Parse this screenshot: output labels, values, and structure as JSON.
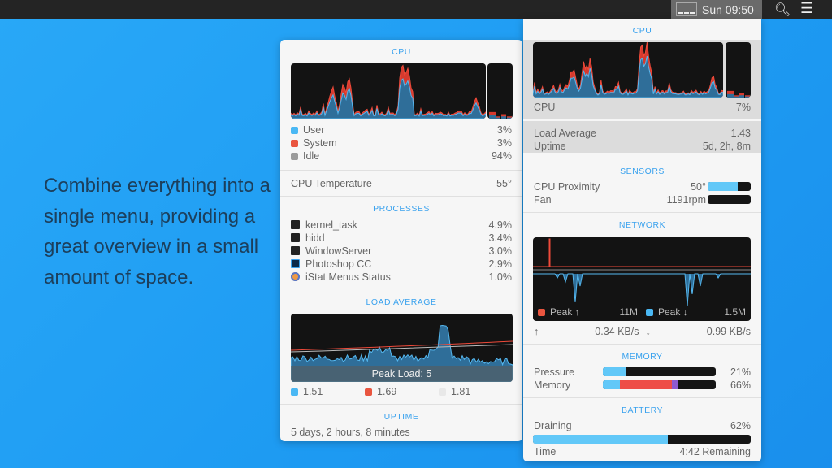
{
  "menubar": {
    "clock": "Sun 09:50",
    "icons": [
      "istat-graph-icon",
      "search-icon",
      "notification-list-icon"
    ]
  },
  "tagline": "Combine everything into a single menu, providing a great overview in a small amount of space.",
  "colors": {
    "user": "#4ab8f4",
    "system": "#e9553f",
    "idle": "#9b9b9b",
    "accent": "#3aa2ee",
    "purple": "#8e5bd0"
  },
  "left": {
    "cpu": {
      "title": "CPU",
      "rows": [
        {
          "label": "User",
          "value": "3%"
        },
        {
          "label": "System",
          "value": "3%"
        },
        {
          "label": "Idle",
          "value": "94%"
        }
      ],
      "temp_label": "CPU Temperature",
      "temp_value": "55°"
    },
    "processes": {
      "title": "PROCESSES",
      "items": [
        {
          "name": "kernel_task",
          "value": "4.9%",
          "icon": "terminal-icon"
        },
        {
          "name": "hidd",
          "value": "3.4%",
          "icon": "terminal-icon"
        },
        {
          "name": "WindowServer",
          "value": "3.0%",
          "icon": "terminal-icon"
        },
        {
          "name": "Photoshop CC",
          "value": "2.9%",
          "icon": "photoshop-icon"
        },
        {
          "name": "iStat Menus Status",
          "value": "1.0%",
          "icon": "istat-icon"
        }
      ]
    },
    "load": {
      "title": "LOAD AVERAGE",
      "peak": "Peak Load: 5",
      "values": [
        "1.51",
        "1.69",
        "1.81"
      ]
    },
    "uptime": {
      "title": "UPTIME",
      "value": "5 days, 2 hours, 8 minutes"
    }
  },
  "right": {
    "cpu": {
      "title": "CPU",
      "label": "CPU",
      "value": "7%",
      "load_label": "Load Average",
      "load_value": "1.43",
      "uptime_label": "Uptime",
      "uptime_value": "5d, 2h, 8m"
    },
    "sensors": {
      "title": "SENSORS",
      "rows": [
        {
          "label": "CPU Proximity",
          "value": "50°",
          "level": 0.69
        },
        {
          "label": "Fan",
          "value": "1191rpm",
          "level": 0
        }
      ]
    },
    "network": {
      "title": "NETWORK",
      "peak_up_label": "Peak ↑",
      "peak_up": "11M",
      "peak_down_label": "Peak ↓",
      "peak_down": "1.5M",
      "up_arrow": "↑",
      "up": "0.34 KB/s",
      "down_arrow": "↓",
      "down": "0.99 KB/s"
    },
    "memory": {
      "title": "MEMORY",
      "pressure_label": "Pressure",
      "pressure": "21%",
      "pressure_level": 0.21,
      "memory_label": "Memory",
      "memory": "66%",
      "memory_segments": [
        0.15,
        0.46,
        0.06
      ]
    },
    "battery": {
      "title": "BATTERY",
      "state": "Draining",
      "percent": "62%",
      "level": 0.62,
      "time_label": "Time",
      "time": "4:42 Remaining"
    }
  }
}
